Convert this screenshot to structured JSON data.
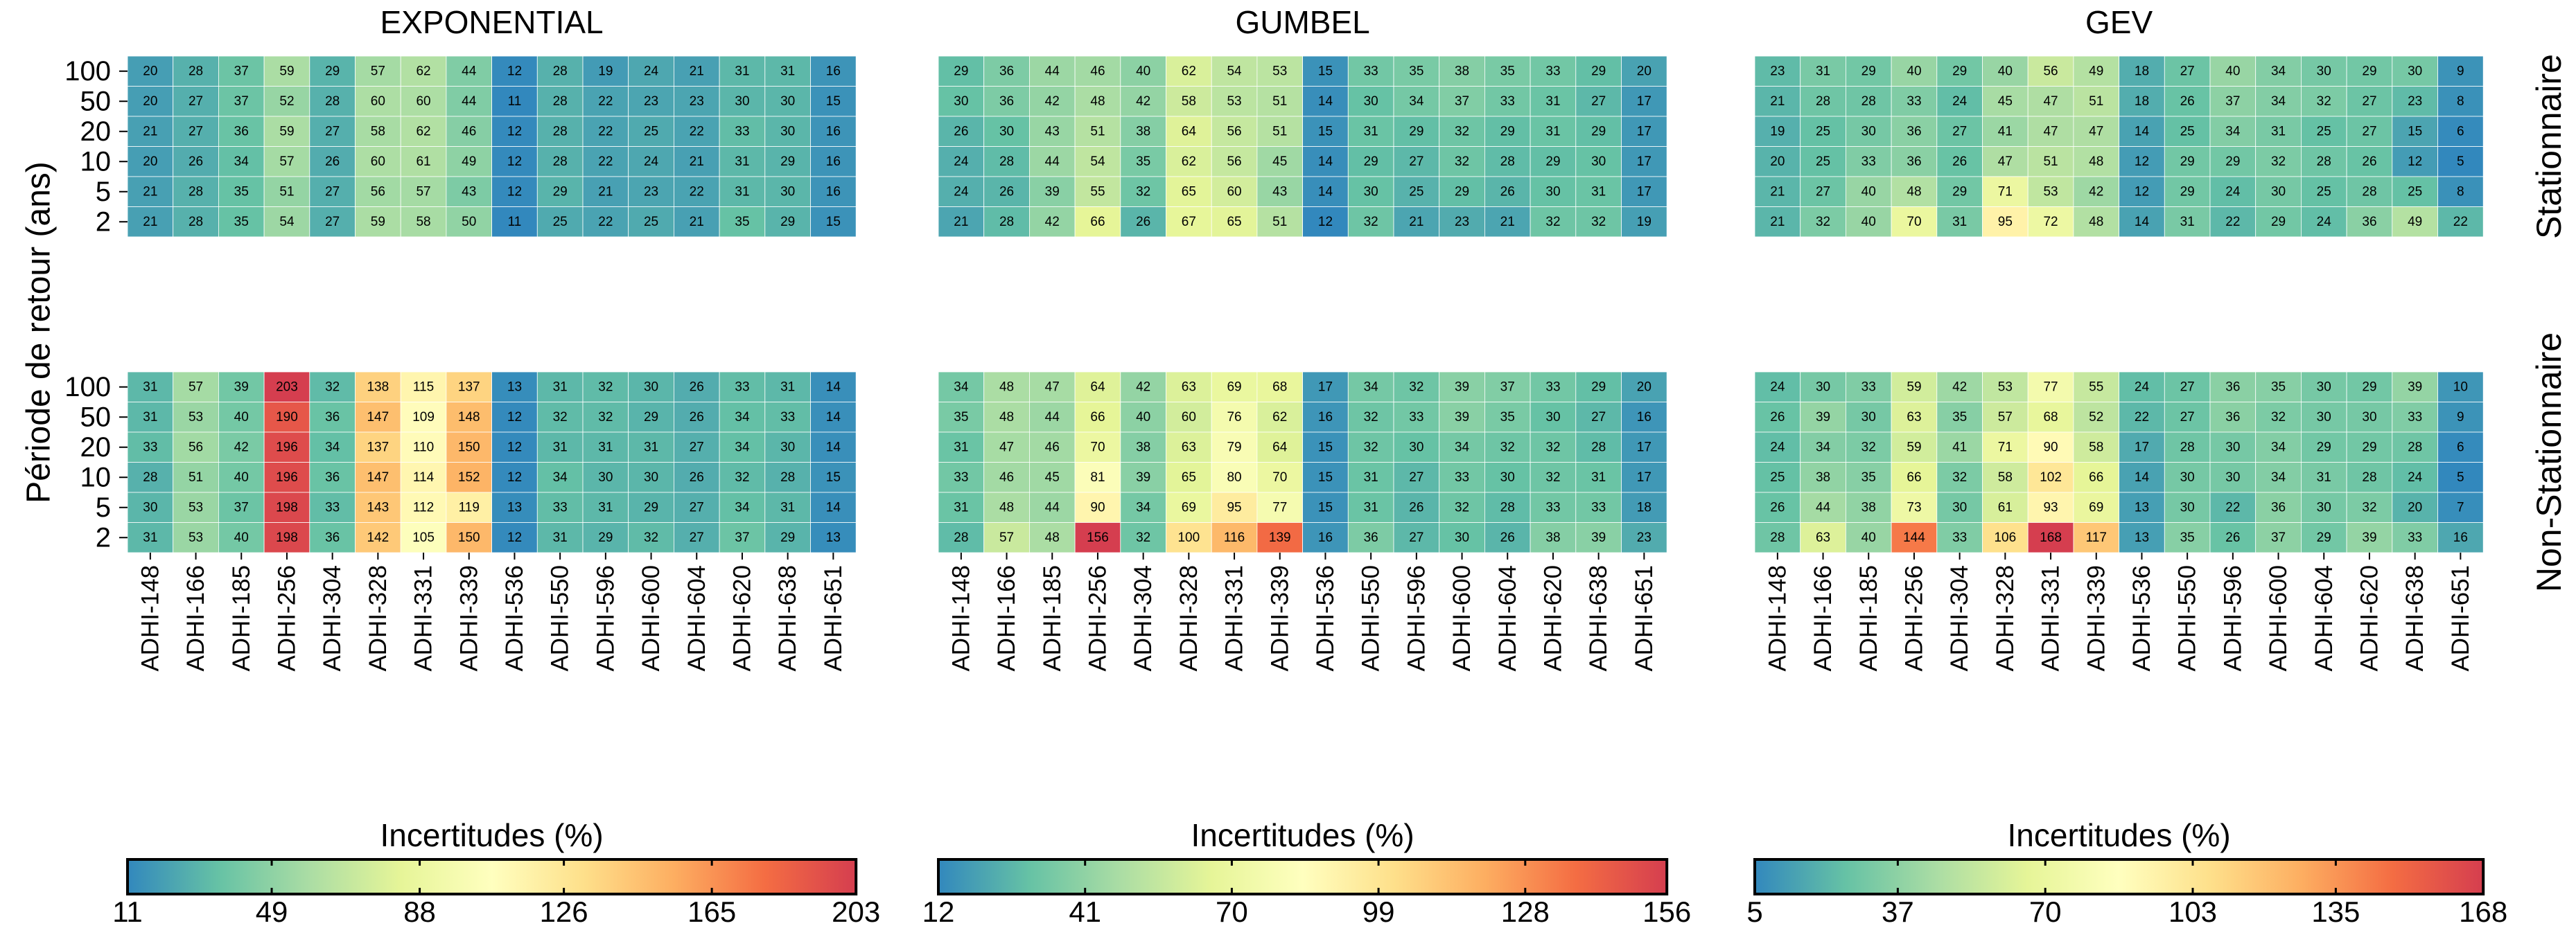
{
  "figure": {
    "ylabel": "Période de retour (ans)",
    "row_labels": [
      "Stationnaire",
      "Non-Stationnaire"
    ],
    "stations": [
      "ADHI-148",
      "ADHI-166",
      "ADHI-185",
      "ADHI-256",
      "ADHI-304",
      "ADHI-328",
      "ADHI-331",
      "ADHI-339",
      "ADHI-536",
      "ADHI-550",
      "ADHI-596",
      "ADHI-600",
      "ADHI-604",
      "ADHI-620",
      "ADHI-638",
      "ADHI-651"
    ],
    "return_periods": [
      "100",
      "50",
      "20",
      "10",
      "5",
      "2"
    ],
    "colormap": [
      "#3288bd",
      "#66c2a5",
      "#abdda4",
      "#e6f598",
      "#ffffbf",
      "#fee08b",
      "#fdae61",
      "#f46d43",
      "#d53e4f"
    ]
  },
  "chart_data": [
    {
      "type": "heatmap",
      "title": "EXPONENTIAL",
      "colorbar_label": "Incertitudes (%)",
      "colorbar_ticks": [
        11,
        49,
        88,
        126,
        165,
        203
      ],
      "vmin": 11,
      "vmax": 203,
      "stationary": [
        [
          20,
          28,
          37,
          59,
          29,
          57,
          62,
          44,
          12,
          28,
          19,
          24,
          21,
          31,
          31,
          16
        ],
        [
          20,
          27,
          37,
          52,
          28,
          60,
          60,
          44,
          11,
          28,
          22,
          23,
          23,
          30,
          30,
          15
        ],
        [
          21,
          27,
          36,
          59,
          27,
          58,
          62,
          46,
          12,
          28,
          22,
          25,
          22,
          33,
          30,
          16
        ],
        [
          20,
          26,
          34,
          57,
          26,
          60,
          61,
          49,
          12,
          28,
          22,
          24,
          21,
          31,
          29,
          16
        ],
        [
          21,
          28,
          35,
          51,
          27,
          56,
          57,
          43,
          12,
          29,
          21,
          23,
          22,
          31,
          30,
          16
        ],
        [
          21,
          28,
          35,
          54,
          27,
          59,
          58,
          50,
          11,
          25,
          22,
          25,
          21,
          35,
          29,
          15
        ]
      ],
      "non_stationary": [
        [
          31,
          57,
          39,
          203,
          32,
          138,
          115,
          137,
          13,
          31,
          32,
          30,
          26,
          33,
          31,
          14
        ],
        [
          31,
          53,
          40,
          190,
          36,
          147,
          109,
          148,
          12,
          32,
          32,
          29,
          26,
          34,
          33,
          14
        ],
        [
          33,
          56,
          42,
          196,
          34,
          137,
          110,
          150,
          12,
          31,
          31,
          31,
          27,
          34,
          30,
          14
        ],
        [
          28,
          51,
          40,
          196,
          36,
          147,
          114,
          152,
          12,
          34,
          30,
          30,
          26,
          32,
          28,
          15
        ],
        [
          30,
          53,
          37,
          198,
          33,
          143,
          112,
          119,
          13,
          33,
          31,
          29,
          27,
          34,
          31,
          14
        ],
        [
          31,
          53,
          40,
          198,
          36,
          142,
          105,
          150,
          12,
          31,
          29,
          32,
          27,
          37,
          29,
          13
        ]
      ]
    },
    {
      "type": "heatmap",
      "title": "GUMBEL",
      "colorbar_label": "Incertitudes (%)",
      "colorbar_ticks": [
        12,
        41,
        70,
        99,
        128,
        156
      ],
      "vmin": 12,
      "vmax": 156,
      "stationary": [
        [
          29,
          36,
          44,
          46,
          40,
          62,
          54,
          53,
          15,
          33,
          35,
          38,
          35,
          33,
          29,
          20
        ],
        [
          30,
          36,
          42,
          48,
          42,
          58,
          53,
          51,
          14,
          30,
          34,
          37,
          33,
          31,
          27,
          17
        ],
        [
          26,
          30,
          43,
          51,
          38,
          64,
          56,
          51,
          15,
          31,
          29,
          32,
          29,
          31,
          29,
          17
        ],
        [
          24,
          28,
          44,
          54,
          35,
          62,
          56,
          45,
          14,
          29,
          27,
          32,
          28,
          29,
          30,
          17
        ],
        [
          24,
          26,
          39,
          55,
          32,
          65,
          60,
          43,
          14,
          30,
          25,
          29,
          26,
          30,
          31,
          17
        ],
        [
          21,
          28,
          42,
          66,
          26,
          67,
          65,
          51,
          12,
          32,
          21,
          23,
          21,
          32,
          32,
          19
        ]
      ],
      "non_stationary": [
        [
          34,
          48,
          47,
          64,
          42,
          63,
          69,
          68,
          17,
          34,
          32,
          39,
          37,
          33,
          29,
          20
        ],
        [
          35,
          48,
          44,
          66,
          40,
          60,
          76,
          62,
          16,
          32,
          33,
          39,
          35,
          30,
          27,
          16
        ],
        [
          31,
          47,
          46,
          70,
          38,
          63,
          79,
          64,
          15,
          32,
          30,
          34,
          32,
          32,
          28,
          17
        ],
        [
          33,
          46,
          45,
          81,
          39,
          65,
          80,
          70,
          15,
          31,
          27,
          33,
          30,
          32,
          31,
          17
        ],
        [
          31,
          48,
          44,
          90,
          34,
          69,
          95,
          77,
          15,
          31,
          26,
          32,
          28,
          33,
          33,
          18
        ],
        [
          28,
          57,
          48,
          156,
          32,
          100,
          116,
          139,
          16,
          36,
          27,
          30,
          26,
          38,
          39,
          23
        ]
      ]
    },
    {
      "type": "heatmap",
      "title": "GEV",
      "colorbar_label": "Incertitudes (%)",
      "colorbar_ticks": [
        5,
        37,
        70,
        103,
        135,
        168
      ],
      "vmin": 5,
      "vmax": 168,
      "stationary": [
        [
          23,
          31,
          29,
          40,
          29,
          40,
          56,
          49,
          18,
          27,
          40,
          34,
          30,
          29,
          30,
          9
        ],
        [
          21,
          28,
          28,
          33,
          24,
          45,
          47,
          51,
          18,
          26,
          37,
          34,
          32,
          27,
          23,
          8
        ],
        [
          19,
          25,
          30,
          36,
          27,
          41,
          47,
          47,
          14,
          25,
          34,
          31,
          25,
          27,
          15,
          6
        ],
        [
          20,
          25,
          33,
          36,
          26,
          47,
          51,
          48,
          12,
          29,
          29,
          32,
          28,
          26,
          12,
          5
        ],
        [
          21,
          27,
          40,
          48,
          29,
          71,
          53,
          42,
          12,
          29,
          24,
          30,
          25,
          28,
          25,
          8
        ],
        [
          21,
          32,
          40,
          70,
          31,
          95,
          72,
          48,
          14,
          31,
          22,
          29,
          24,
          36,
          49,
          22
        ]
      ],
      "non_stationary": [
        [
          24,
          30,
          33,
          59,
          42,
          53,
          77,
          55,
          24,
          27,
          36,
          35,
          30,
          29,
          39,
          10
        ],
        [
          26,
          39,
          30,
          63,
          35,
          57,
          68,
          52,
          22,
          27,
          36,
          32,
          30,
          30,
          33,
          9
        ],
        [
          24,
          34,
          32,
          59,
          41,
          71,
          90,
          58,
          17,
          28,
          30,
          34,
          29,
          29,
          28,
          6
        ],
        [
          25,
          38,
          35,
          66,
          32,
          58,
          102,
          66,
          14,
          30,
          30,
          34,
          31,
          28,
          24,
          5
        ],
        [
          26,
          44,
          38,
          73,
          30,
          61,
          93,
          69,
          13,
          30,
          22,
          36,
          30,
          32,
          20,
          7
        ],
        [
          28,
          63,
          40,
          144,
          33,
          106,
          168,
          117,
          13,
          35,
          26,
          37,
          29,
          39,
          33,
          16
        ]
      ]
    }
  ]
}
